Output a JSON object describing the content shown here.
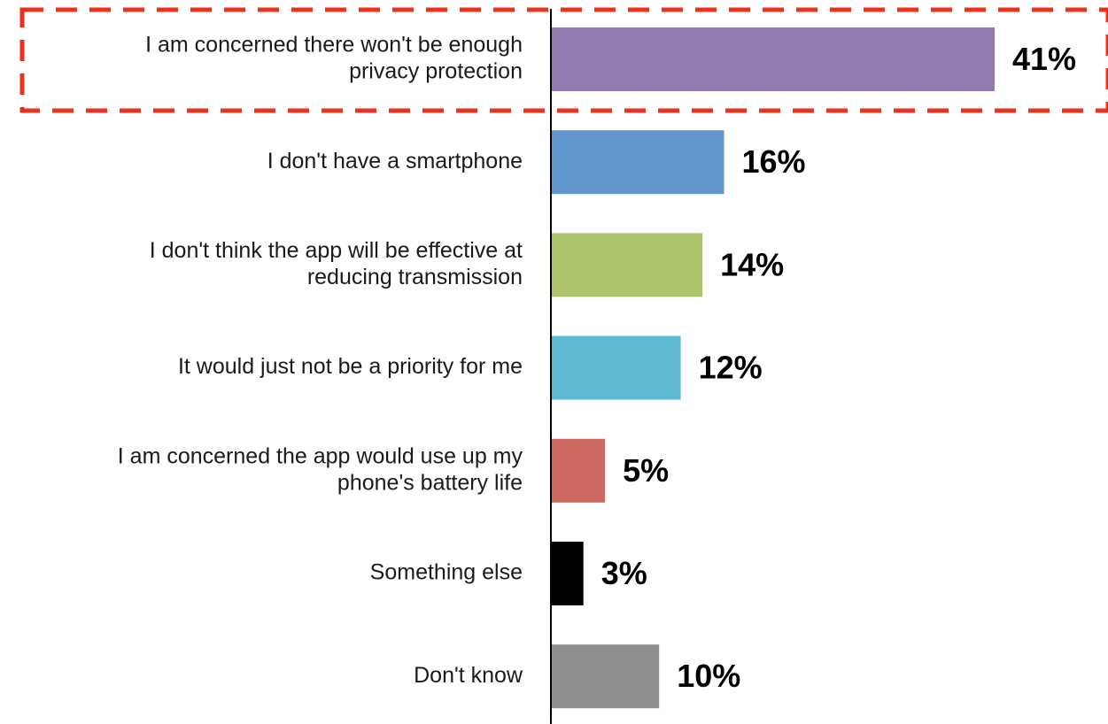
{
  "chart_data": {
    "type": "bar",
    "orientation": "horizontal",
    "categories": [
      [
        "I am concerned there won't be enough",
        "privacy protection"
      ],
      [
        "I don't have a smartphone"
      ],
      [
        "I don't think the app will be effective at",
        "reducing transmission"
      ],
      [
        "It would just not be a priority for me"
      ],
      [
        "I am concerned the app would use up my",
        "phone's battery life"
      ],
      [
        "Something else"
      ],
      [
        "Don't know"
      ]
    ],
    "values": [
      41,
      16,
      14,
      12,
      5,
      3,
      10
    ],
    "value_labels": [
      "41%",
      "16%",
      "14%",
      "12%",
      "5%",
      "3%",
      "10%"
    ],
    "colors": [
      "#917ab0",
      "#6096cb",
      "#abc46c",
      "#5fb9d3",
      "#ce6760",
      "#000000",
      "#8e8e8e"
    ],
    "xlim": [
      0,
      45
    ],
    "title": "",
    "xlabel": "",
    "ylabel": "",
    "grid": false,
    "legend": "none",
    "highlight": {
      "category_index": 0,
      "color": "#e8321e",
      "style": "dashed"
    }
  }
}
